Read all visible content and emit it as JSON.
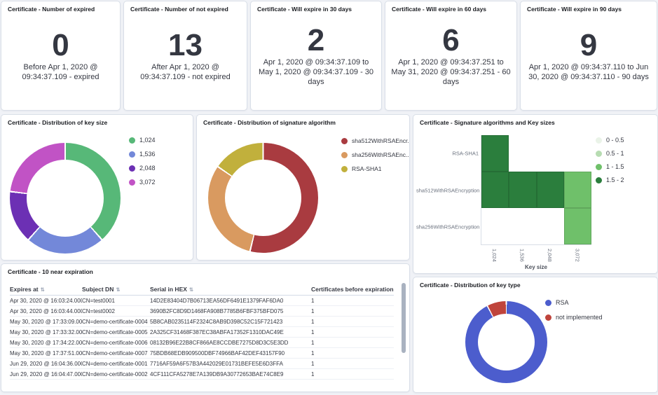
{
  "colors": {
    "page_bg": "#f0f2f7",
    "panel_bg": "#ffffff",
    "panel_border": "#d9dfe8",
    "text_dark": "#343741",
    "text_subdued": "#69707d"
  },
  "metrics": [
    {
      "title": "Certificate - Number of expired",
      "value": "0",
      "subtitle": "Before Apr 1, 2020 @ 09:34:37.109 - expired"
    },
    {
      "title": "Certificate - Number of not expired",
      "value": "13",
      "subtitle": "After Apr 1, 2020 @ 09:34:37.109 - not expired"
    },
    {
      "title": "Certificate - Will expire in 30 days",
      "value": "2",
      "subtitle": "Apr 1, 2020 @ 09:34:37.109 to May 1, 2020 @ 09:34:37.109 - 30 days"
    },
    {
      "title": "Certificate - Will expire in 60 days",
      "value": "6",
      "subtitle": "Apr 1, 2020 @ 09:34:37.251 to May 31, 2020 @ 09:34:37.251 - 60 days"
    },
    {
      "title": "Certificate - Will expire in 90 days",
      "value": "9",
      "subtitle": "Apr 1, 2020 @ 09:34:37.110 to Jun 30, 2020 @ 09:34:37.110 - 90 days"
    }
  ],
  "charts": {
    "key_size": {
      "type": "donut",
      "title": "Certificate - Distribution of key size",
      "legend_position": "right",
      "slices": [
        {
          "label": "1,024",
          "value": 5,
          "color": "#57b878"
        },
        {
          "label": "1,536",
          "value": 3,
          "color": "#7388d9"
        },
        {
          "label": "2,048",
          "value": 2,
          "color": "#6c30b4"
        },
        {
          "label": "3,072",
          "value": 3,
          "color": "#c153c5"
        }
      ]
    },
    "sig_algo": {
      "type": "donut",
      "title": "Certificate - Distribution of signature algorithm",
      "legend_position": "right",
      "slices": [
        {
          "label": "sha512WithRSAEncr...",
          "value": 7,
          "color": "#a93b40"
        },
        {
          "label": "sha256WithRSAEnc...",
          "value": 4,
          "color": "#d99a60"
        },
        {
          "label": "RSA-SHA1",
          "value": 2,
          "color": "#c1b03c"
        }
      ]
    },
    "key_type": {
      "type": "donut",
      "title": "Certificate - Distribution of key type",
      "legend_position": "right",
      "slices": [
        {
          "label": "RSA",
          "value": 12,
          "color": "#4c5dcd"
        },
        {
          "label": "not implemented",
          "value": 1,
          "color": "#bf443c"
        }
      ]
    },
    "heatmap": {
      "type": "heatmap",
      "title": "Certificate - Signature algorithms and Key sizes",
      "xlabel": "Key size",
      "x_labels": [
        "1,024",
        "1,536",
        "2,048",
        "3,072"
      ],
      "y_labels": [
        "RSA-SHA1",
        "sha512WithRSAEncryption",
        "sha256WithRSAEncryption"
      ],
      "legend": [
        {
          "label": "0 - 0.5",
          "color": "#eaf3e8"
        },
        {
          "label": "0.5 - 1",
          "color": "#b7dcb2"
        },
        {
          "label": "1 - 1.5",
          "color": "#6fc06a"
        },
        {
          "label": "1.5 - 2",
          "color": "#2b7e3d"
        }
      ],
      "cells": [
        {
          "row": 0,
          "col": 0,
          "value": 2,
          "bucket": "1.5 - 2"
        },
        {
          "row": 1,
          "col": 0,
          "value": 2,
          "bucket": "1.5 - 2"
        },
        {
          "row": 1,
          "col": 1,
          "value": 2,
          "bucket": "1.5 - 2"
        },
        {
          "row": 1,
          "col": 2,
          "value": 2,
          "bucket": "1.5 - 2"
        },
        {
          "row": 1,
          "col": 3,
          "value": 1,
          "bucket": "1 - 1.5"
        },
        {
          "row": 2,
          "col": 3,
          "value": 1,
          "bucket": "1 - 1.5"
        }
      ]
    }
  },
  "table": {
    "title": "Certificate - 10 near expiration",
    "sort_icon": "⇅",
    "columns": [
      "Expires at",
      "Subject DN",
      "Serial in HEX",
      "Certificates before expiration"
    ],
    "rows": [
      [
        "Apr 30, 2020 @ 16:03:24.000",
        "CN=test0001",
        "14D2E83404D7B06713EA56DF6491E1379FAF6DA0",
        "1"
      ],
      [
        "Apr 30, 2020 @ 16:03:44.000",
        "CN=test0002",
        "3690B2FC8D9D1468FA908B7785B6FBF375BFD075",
        "1"
      ],
      [
        "May 30, 2020 @ 17:33:09.000",
        "CN=demo-certificate-0004",
        "5B8CAB0235114F2324C8AB9D398C52C15F721423",
        "1"
      ],
      [
        "May 30, 2020 @ 17:33:32.000",
        "CN=demo-certificate-0005",
        "2A325CF31468F387EC38ABFA17352F1310DAC49E",
        "1"
      ],
      [
        "May 30, 2020 @ 17:34:22.000",
        "CN=demo-certificate-0006",
        "08132B96E22B8CF866AE8CCDBE7275D8D3C5E3DD",
        "1"
      ],
      [
        "May 30, 2020 @ 17:37:51.000",
        "CN=demo-certificate-0007",
        "75BDB68EDB909500DBF74966BAF42DEF43157F90",
        "1"
      ],
      [
        "Jun 29, 2020 @ 16:04:36.000",
        "CN=demo-certificate-0001",
        "7716AF59A6F57B3A442029E01731BEFE5E6D3FFA",
        "1"
      ],
      [
        "Jun 29, 2020 @ 16:04:47.000",
        "CN=demo-certificate-0002",
        "4CF111CFA5278E7A139DB9A30772653BAE74C8E9",
        "1"
      ]
    ]
  }
}
